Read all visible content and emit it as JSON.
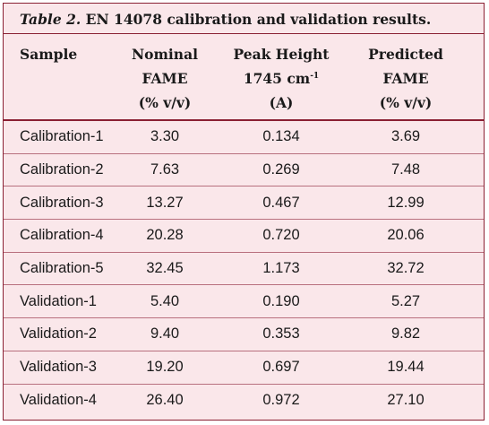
{
  "caption": {
    "label": "Table 2.",
    "text": "EN 14078 calibration and validation results."
  },
  "headers": {
    "sample": "Sample",
    "nominal": [
      "Nominal",
      "FAME",
      "(% v/v)"
    ],
    "peak": [
      "Peak Height",
      "1745 cm",
      "-1",
      "(A)"
    ],
    "predicted": [
      "Predicted",
      "FAME",
      "(% v/v)"
    ]
  },
  "rows": [
    {
      "sample": "Calibration-1",
      "nominal": "3.30",
      "peak": "0.134",
      "predicted": "3.69"
    },
    {
      "sample": "Calibration-2",
      "nominal": "7.63",
      "peak": "0.269",
      "predicted": "7.48"
    },
    {
      "sample": "Calibration-3",
      "nominal": "13.27",
      "peak": "0.467",
      "predicted": "12.99"
    },
    {
      "sample": "Calibration-4",
      "nominal": "20.28",
      "peak": "0.720",
      "predicted": "20.06"
    },
    {
      "sample": "Calibration-5",
      "nominal": "32.45",
      "peak": "1.173",
      "predicted": "32.72"
    },
    {
      "sample": "Validation-1",
      "nominal": "5.40",
      "peak": "0.190",
      "predicted": "5.27"
    },
    {
      "sample": "Validation-2",
      "nominal": "9.40",
      "peak": "0.353",
      "predicted": "9.82"
    },
    {
      "sample": "Validation-3",
      "nominal": "19.20",
      "peak": "0.697",
      "predicted": "19.44"
    },
    {
      "sample": "Validation-4",
      "nominal": "26.40",
      "peak": "0.972",
      "predicted": "27.10"
    }
  ],
  "colors": {
    "background": "#fae7ea",
    "rule": "#8a2033",
    "row_divider": "#b8707e",
    "text": "#1a1a1a"
  }
}
